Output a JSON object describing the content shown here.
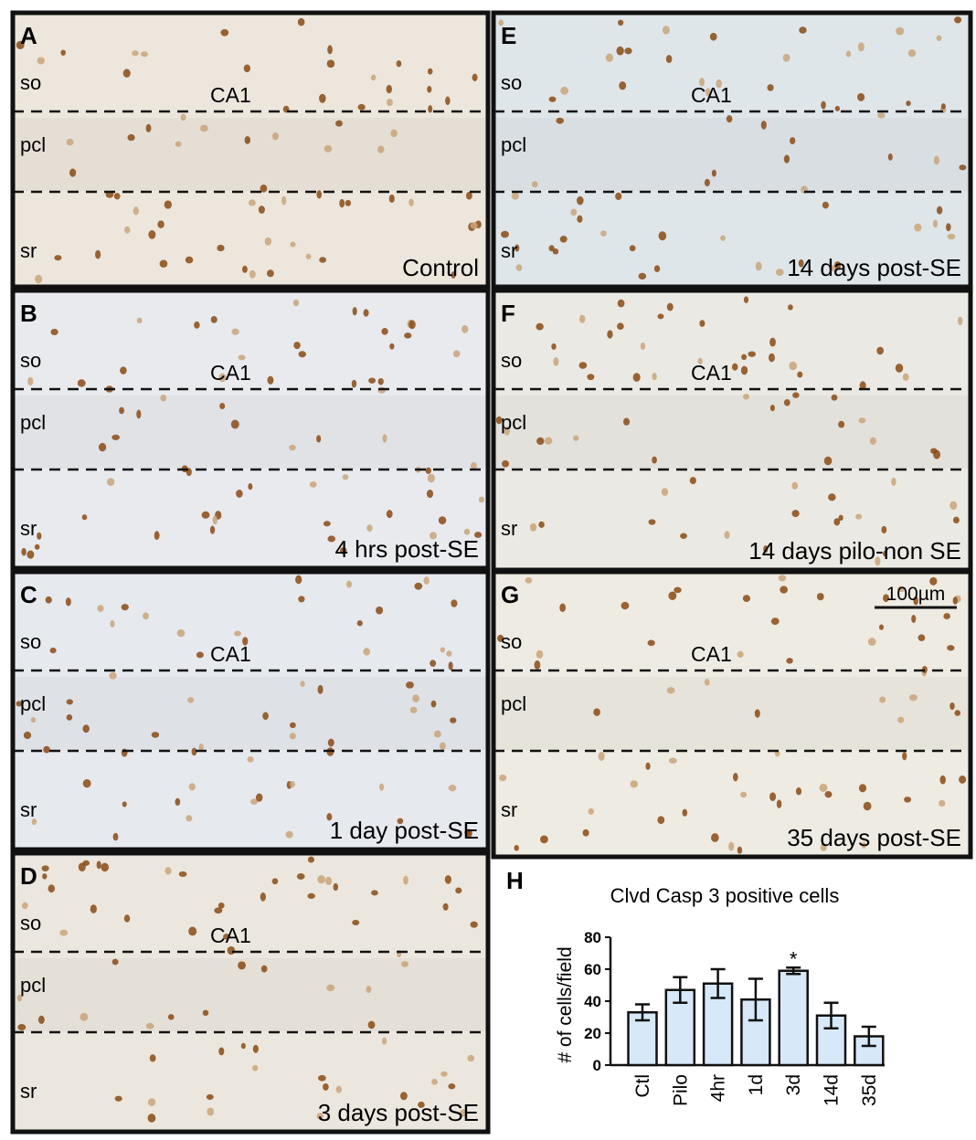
{
  "panels": [
    {
      "letter": "A",
      "region": "CA1",
      "layers": [
        "so",
        "pcl",
        "sr"
      ],
      "caption": "Control"
    },
    {
      "letter": "B",
      "region": "CA1",
      "layers": [
        "so",
        "pcl",
        "sr"
      ],
      "caption": "4 hrs post-SE"
    },
    {
      "letter": "C",
      "region": "CA1",
      "layers": [
        "so",
        "pcl",
        "sr"
      ],
      "caption": "1 day post-SE"
    },
    {
      "letter": "D",
      "region": "CA1",
      "layers": [
        "so",
        "pcl",
        "sr"
      ],
      "caption": "3 days post-SE"
    },
    {
      "letter": "E",
      "region": "CA1",
      "layers": [
        "so",
        "pcl",
        "sr"
      ],
      "caption": "14 days post-SE"
    },
    {
      "letter": "F",
      "region": "CA1",
      "layers": [
        "so",
        "pcl",
        "sr"
      ],
      "caption": "14 days pilo-non SE"
    },
    {
      "letter": "G",
      "region": "CA1",
      "layers": [
        "so",
        "pcl",
        "sr"
      ],
      "caption": "35 days post-SE"
    }
  ],
  "scale_bar": "100µm",
  "chart_letter": "H",
  "chart_data": {
    "type": "bar",
    "title": "Clvd Casp 3 positive cells",
    "y_label": "# of cells/field",
    "categories": [
      "Ctl",
      "Pilo",
      "4hr",
      "1d",
      "3d",
      "14d",
      "35d"
    ],
    "values": [
      33,
      47,
      51,
      41,
      59,
      31,
      18
    ],
    "errors": [
      5,
      8,
      9,
      13,
      2,
      8,
      6
    ],
    "color": "#d7e9f8",
    "ylim": [
      0,
      80
    ],
    "yticks": [
      0,
      20,
      40,
      60,
      80
    ],
    "annotation": "*",
    "annotation_category": 4
  }
}
